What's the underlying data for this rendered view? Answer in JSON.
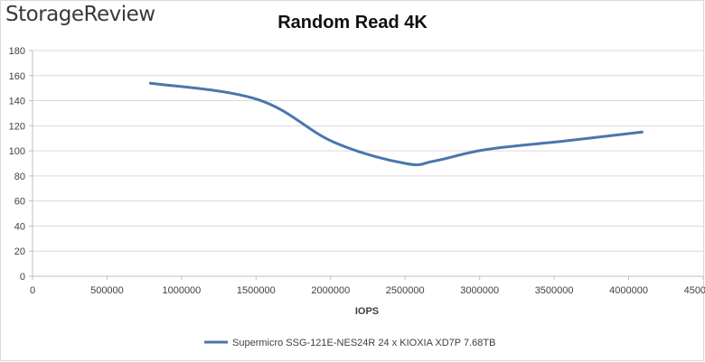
{
  "logo": "StorageReview",
  "colors": {
    "series": "#4a76ad",
    "grid": "#d9d9d9",
    "axis": "#bfbfbf",
    "text": "#404040"
  },
  "chart_data": {
    "type": "line",
    "title": "Random Read 4K",
    "xlabel": "IOPS",
    "ylabel": "",
    "xlim": [
      0,
      4500000
    ],
    "ylim": [
      0,
      180
    ],
    "xticks": [
      0,
      500000,
      1000000,
      1500000,
      2000000,
      2500000,
      3000000,
      3500000,
      4000000,
      4500000
    ],
    "xtick_labels": [
      "0",
      "500000",
      "1000000",
      "1500000",
      "2000000",
      "2500000",
      "3000000",
      "3500000",
      "4000000",
      "4500000"
    ],
    "yticks": [
      0,
      20,
      40,
      60,
      80,
      100,
      120,
      140,
      160,
      180
    ],
    "ytick_labels": [
      "0",
      "20",
      "40",
      "60",
      "80",
      "100",
      "120",
      "140",
      "160",
      "180"
    ],
    "grid": true,
    "legend": "bottom",
    "series": [
      {
        "name": "Supermicro SSG-121E-NES24R 24 x KIOXIA XD7P 7.68TB",
        "x": [
          790000,
          1510000,
          2020000,
          2500000,
          2700000,
          3040000,
          3580000,
          4090000
        ],
        "y": [
          154,
          141,
          107,
          90,
          92,
          101,
          108,
          115
        ]
      }
    ]
  }
}
